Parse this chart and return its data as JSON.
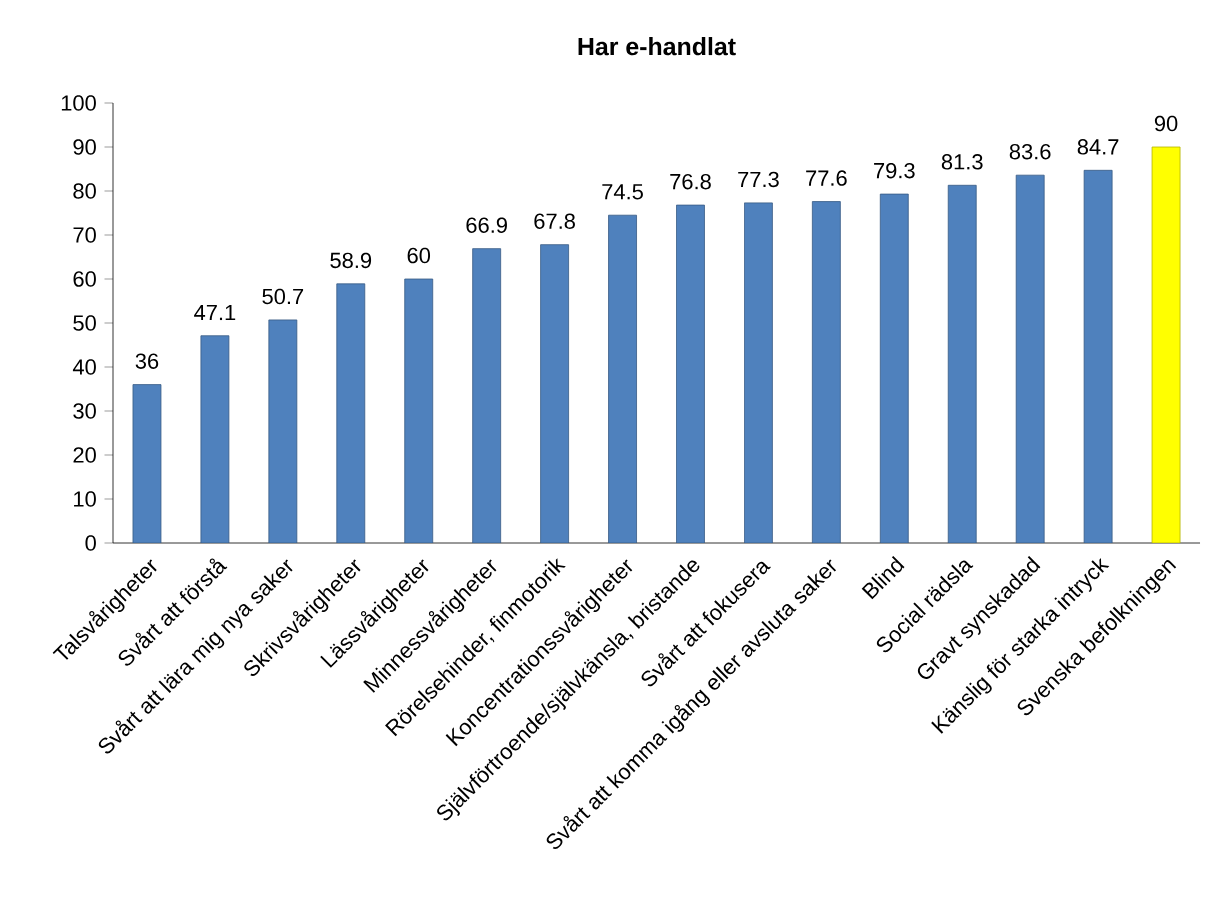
{
  "chart_data": {
    "type": "bar",
    "title": "Har e-handlat",
    "categories": [
      "Talsvårigheter",
      "Svårt att förstå",
      "Svårt att lära mig nya saker",
      "Skrivsvårigheter",
      "Lässvårigheter",
      "Minnessvårigheter",
      "Rörelsehinder, finmotorik",
      "Koncentrationssvårigheter",
      "Självförtroende/självkänsla, bristande",
      "Svårt att fokusera",
      "Svårt att komma igång eller avsluta saker",
      "Blind",
      "Social rädsla",
      "Gravt synskadad",
      "Känslig för starka intryck",
      "Svenska befolkningen"
    ],
    "values": [
      36,
      47.1,
      50.7,
      58.9,
      60,
      66.9,
      67.8,
      74.5,
      76.8,
      77.3,
      77.6,
      79.3,
      81.3,
      83.6,
      84.7,
      90
    ],
    "colors": [
      "#4f81bd",
      "#4f81bd",
      "#4f81bd",
      "#4f81bd",
      "#4f81bd",
      "#4f81bd",
      "#4f81bd",
      "#4f81bd",
      "#4f81bd",
      "#4f81bd",
      "#4f81bd",
      "#4f81bd",
      "#4f81bd",
      "#4f81bd",
      "#4f81bd",
      "#ffff00"
    ],
    "ylim": [
      0,
      100
    ],
    "yticks": [
      0,
      10,
      20,
      30,
      40,
      50,
      60,
      70,
      80,
      90,
      100
    ],
    "data_labels": true,
    "grid": false
  }
}
